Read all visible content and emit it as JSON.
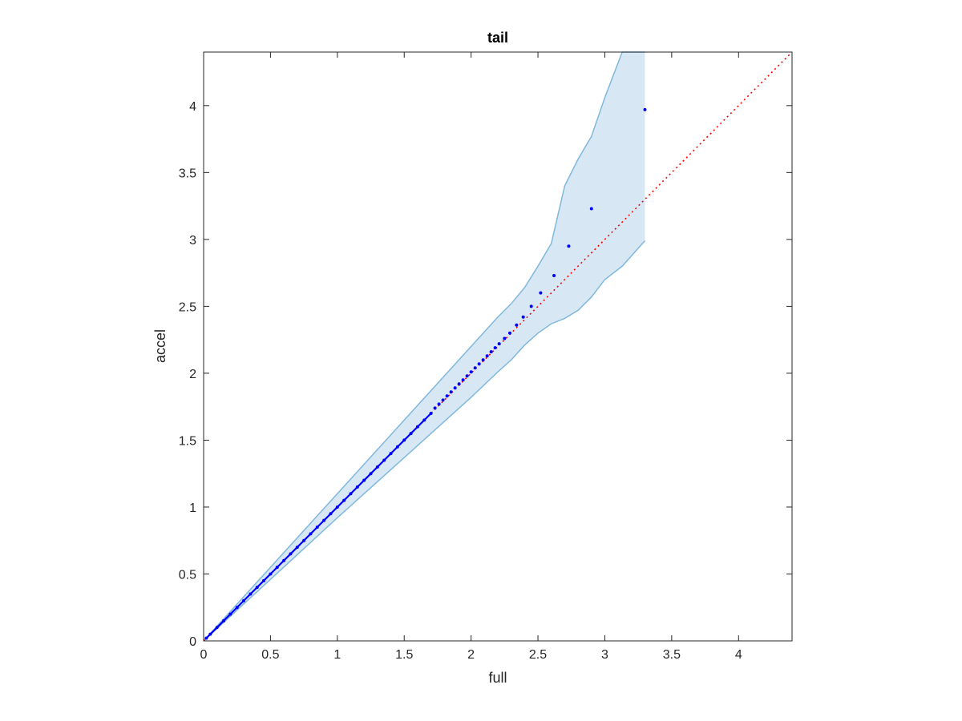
{
  "chart_data": {
    "type": "scatter",
    "title": "tail",
    "xlabel": "full",
    "ylabel": "accel",
    "xlim": [
      0,
      4.4
    ],
    "ylim": [
      0,
      4.4
    ],
    "xticks": [
      "0",
      "0.5",
      "1",
      "1.5",
      "2",
      "2.5",
      "3",
      "3.5",
      "4"
    ],
    "yticks": [
      "0",
      "0.5",
      "1",
      "1.5",
      "2",
      "2.5",
      "3",
      "3.5",
      "4"
    ],
    "grid": false,
    "box": true,
    "reference_line": {
      "from": [
        0,
        0
      ],
      "to": [
        4.4,
        4.4
      ],
      "style": "dotted",
      "color": "#ff0000"
    },
    "band": {
      "color": "#7fb8db",
      "fill": "#d8e7f4",
      "x": [
        0,
        0.5,
        1.0,
        1.5,
        1.8,
        2.0,
        2.2,
        2.3,
        2.4,
        2.5,
        2.6,
        2.7,
        2.8,
        2.9,
        3.0,
        3.13,
        3.3
      ],
      "upper": [
        0,
        0.55,
        1.1,
        1.65,
        1.98,
        2.2,
        2.42,
        2.52,
        2.64,
        2.8,
        2.97,
        3.4,
        3.6,
        3.77,
        4.06,
        4.4,
        4.4
      ],
      "lower": [
        0,
        0.46,
        0.92,
        1.37,
        1.64,
        1.82,
        2.01,
        2.1,
        2.21,
        2.3,
        2.37,
        2.41,
        2.47,
        2.57,
        2.7,
        2.8,
        2.99
      ]
    },
    "series": [
      {
        "color": "#0000ff",
        "x": [
          0.02,
          0.05,
          0.1,
          0.15,
          0.2,
          0.25,
          0.3,
          0.35,
          0.4,
          0.45,
          0.5,
          0.55,
          0.6,
          0.65,
          0.7,
          0.75,
          0.8,
          0.85,
          0.9,
          0.95,
          1.0,
          1.05,
          1.1,
          1.15,
          1.2,
          1.25,
          1.3,
          1.35,
          1.4,
          1.45,
          1.5,
          1.55,
          1.6,
          1.65,
          1.7,
          1.73,
          1.76,
          1.79,
          1.82,
          1.85,
          1.88,
          1.91,
          1.94,
          1.97,
          2.0,
          2.03,
          2.06,
          2.09,
          2.12,
          2.15,
          2.18,
          2.21,
          2.25,
          2.29,
          2.34,
          2.39,
          2.45,
          2.52,
          2.62,
          2.73,
          2.9,
          3.3
        ],
        "y": [
          0.02,
          0.05,
          0.1,
          0.15,
          0.2,
          0.25,
          0.3,
          0.35,
          0.4,
          0.45,
          0.5,
          0.55,
          0.6,
          0.65,
          0.7,
          0.75,
          0.8,
          0.85,
          0.9,
          0.95,
          1.0,
          1.05,
          1.1,
          1.15,
          1.2,
          1.25,
          1.3,
          1.35,
          1.4,
          1.45,
          1.5,
          1.55,
          1.6,
          1.65,
          1.7,
          1.74,
          1.77,
          1.8,
          1.83,
          1.86,
          1.89,
          1.92,
          1.95,
          1.98,
          2.01,
          2.04,
          2.07,
          2.1,
          2.13,
          2.16,
          2.19,
          2.22,
          2.26,
          2.3,
          2.36,
          2.42,
          2.5,
          2.6,
          2.73,
          2.95,
          3.23,
          3.97
        ]
      }
    ]
  }
}
